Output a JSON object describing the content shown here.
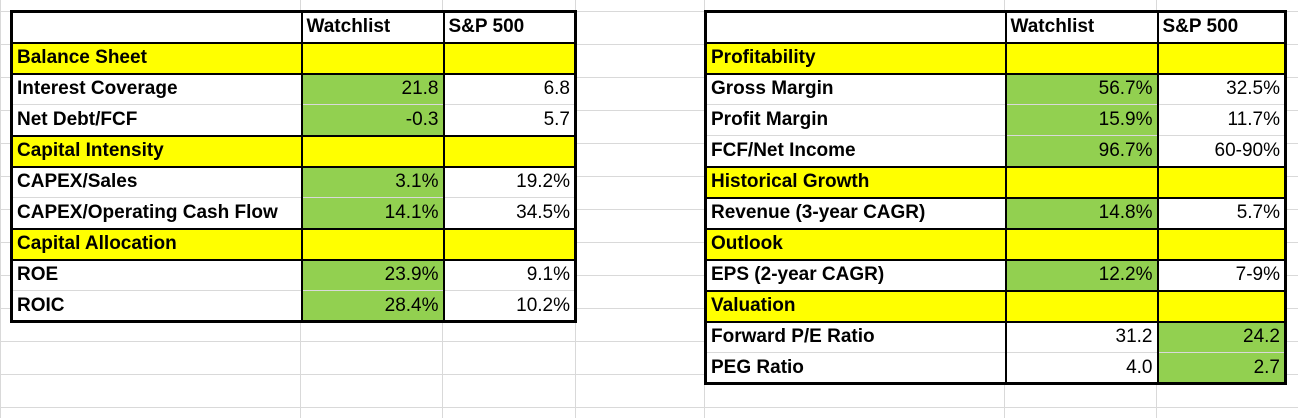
{
  "left_table": {
    "headers": [
      "",
      "Watchlist",
      "S&P 500"
    ],
    "rows": [
      {
        "type": "section",
        "label": "Balance Sheet"
      },
      {
        "type": "data",
        "label": "Interest Coverage",
        "watchlist": "21.8",
        "sp500": "6.8",
        "highlight": "watchlist"
      },
      {
        "type": "data",
        "label": "Net Debt/FCF",
        "watchlist": "-0.3",
        "sp500": "5.7",
        "highlight": "watchlist"
      },
      {
        "type": "section",
        "label": "Capital Intensity"
      },
      {
        "type": "data",
        "label": "CAPEX/Sales",
        "watchlist": "3.1%",
        "sp500": "19.2%",
        "highlight": "watchlist"
      },
      {
        "type": "data",
        "label": "CAPEX/Operating Cash Flow",
        "watchlist": "14.1%",
        "sp500": "34.5%",
        "highlight": "watchlist"
      },
      {
        "type": "section",
        "label": "Capital Allocation"
      },
      {
        "type": "data",
        "label": "ROE",
        "watchlist": "23.9%",
        "sp500": "9.1%",
        "highlight": "watchlist"
      },
      {
        "type": "data",
        "label": "ROIC",
        "watchlist": "28.4%",
        "sp500": "10.2%",
        "highlight": "watchlist"
      }
    ]
  },
  "right_table": {
    "headers": [
      "",
      "Watchlist",
      "S&P 500"
    ],
    "rows": [
      {
        "type": "section",
        "label": "Profitability"
      },
      {
        "type": "data",
        "label": "Gross Margin",
        "watchlist": "56.7%",
        "sp500": "32.5%",
        "highlight": "watchlist"
      },
      {
        "type": "data",
        "label": "Profit Margin",
        "watchlist": "15.9%",
        "sp500": "11.7%",
        "highlight": "watchlist"
      },
      {
        "type": "data",
        "label": "FCF/Net Income",
        "watchlist": "96.7%",
        "sp500": "60-90%",
        "highlight": "watchlist"
      },
      {
        "type": "section",
        "label": "Historical Growth"
      },
      {
        "type": "data",
        "label": "Revenue (3-year CAGR)",
        "watchlist": "14.8%",
        "sp500": "5.7%",
        "highlight": "watchlist"
      },
      {
        "type": "section",
        "label": "Outlook"
      },
      {
        "type": "data",
        "label": "EPS (2-year CAGR)",
        "watchlist": "12.2%",
        "sp500": "7-9%",
        "highlight": "watchlist"
      },
      {
        "type": "section",
        "label": "Valuation"
      },
      {
        "type": "data",
        "label": "Forward P/E Ratio",
        "watchlist": "31.2",
        "sp500": "24.2",
        "highlight": "sp500"
      },
      {
        "type": "data",
        "label": "PEG Ratio",
        "watchlist": "4.0",
        "sp500": "2.7",
        "highlight": "sp500"
      }
    ]
  },
  "colors": {
    "section_fill": "#ffff00",
    "better_fill": "#92d050",
    "gridline": "#d9d9d9",
    "border": "#000000"
  }
}
